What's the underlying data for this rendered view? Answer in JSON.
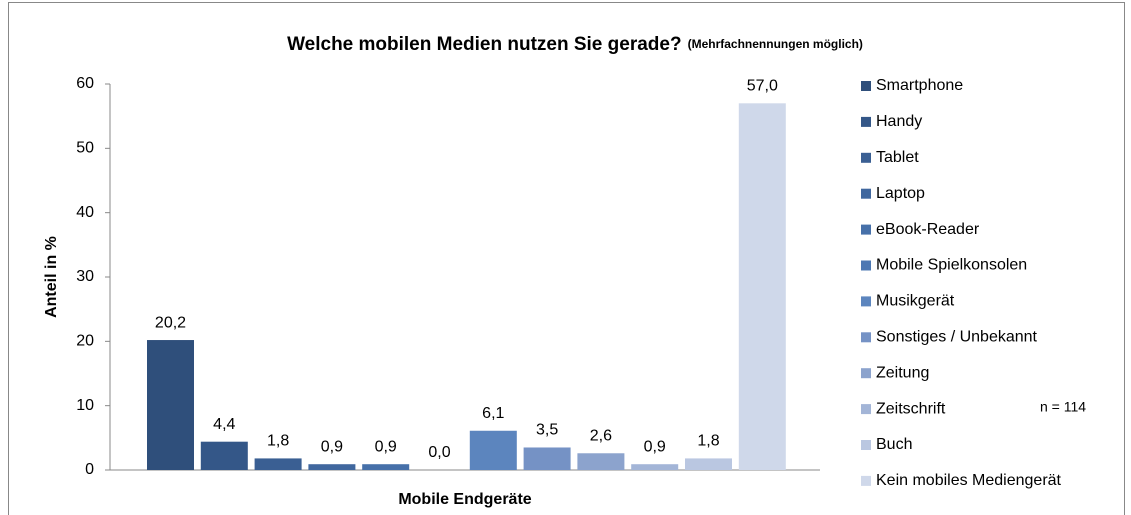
{
  "chart_data": {
    "type": "bar",
    "title": "Welche mobilen Medien nutzen Sie gerade?",
    "subtitle": "(Mehrfachnennungen möglich)",
    "x_label": "Mobile Endgeräte",
    "y_label": "Anteil in %",
    "annotation": "n = 114",
    "categories": [
      null
    ],
    "series": [
      {
        "name": "Smartphone",
        "color": "#2f4f7b",
        "values": [
          20.2
        ],
        "value_labels": [
          "20,2"
        ]
      },
      {
        "name": "Handy",
        "color": "#345788",
        "values": [
          4.4
        ],
        "value_labels": [
          "4,4"
        ]
      },
      {
        "name": "Tablet",
        "color": "#3a5f93",
        "values": [
          1.8
        ],
        "value_labels": [
          "1,8"
        ]
      },
      {
        "name": "Laptop",
        "color": "#40679e",
        "values": [
          0.9
        ],
        "value_labels": [
          "0,9"
        ]
      },
      {
        "name": "eBook-Reader",
        "color": "#4670a9",
        "values": [
          0.9
        ],
        "value_labels": [
          "0,9"
        ]
      },
      {
        "name": "Mobile Spielkonsolen",
        "color": "#4d78b3",
        "values": [
          0
        ],
        "value_labels": [
          "0,0"
        ]
      },
      {
        "name": "Musikgerät",
        "color": "#5c85be",
        "values": [
          6.1
        ],
        "value_labels": [
          "6,1"
        ]
      },
      {
        "name": "Sonstiges / Unbekannt",
        "color": "#7592c5",
        "values": [
          3.5
        ],
        "value_labels": [
          "3,5"
        ]
      },
      {
        "name": "Zeitung",
        "color": "#8ca3cd",
        "values": [
          2.6
        ],
        "value_labels": [
          "2,6"
        ]
      },
      {
        "name": "Zeitschrift",
        "color": "#a3b5d7",
        "values": [
          0.9
        ],
        "value_labels": [
          "0,9"
        ]
      },
      {
        "name": "Buch",
        "color": "#bac7e1",
        "values": [
          1.8
        ],
        "value_labels": [
          "1,8"
        ]
      },
      {
        "name": "Kein mobiles Mediengerät",
        "color": "#cfd8ea",
        "values": [
          57
        ],
        "value_labels": [
          "57,0"
        ]
      }
    ],
    "ylim": [
      0,
      60
    ],
    "yticks": [
      0,
      10,
      20,
      30,
      40,
      50,
      60
    ],
    "grid": false,
    "legend": "right"
  }
}
